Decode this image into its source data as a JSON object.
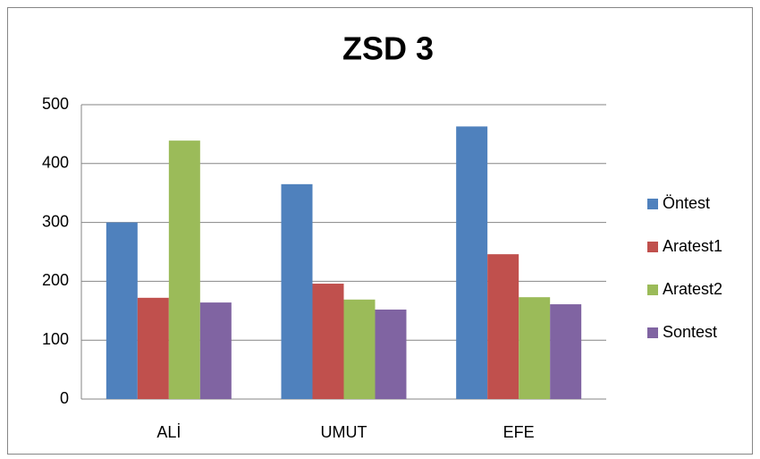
{
  "chart_data": {
    "type": "bar",
    "title": "ZSD 3",
    "categories": [
      "ALİ",
      "UMUT",
      "EFE"
    ],
    "series": [
      {
        "name": "Öntest",
        "color": "#4f81bd",
        "values": [
          300,
          365,
          463
        ]
      },
      {
        "name": "Aratest1",
        "color": "#c0504d",
        "values": [
          172,
          196,
          246
        ]
      },
      {
        "name": "Aratest2",
        "color": "#9bbb59",
        "values": [
          439,
          169,
          173
        ]
      },
      {
        "name": "Sontest",
        "color": "#8064a2",
        "values": [
          164,
          152,
          161
        ]
      }
    ],
    "ylim": [
      0,
      500
    ],
    "yticks": [
      0,
      100,
      200,
      300,
      400,
      500
    ],
    "grid": true,
    "legend": "right"
  }
}
